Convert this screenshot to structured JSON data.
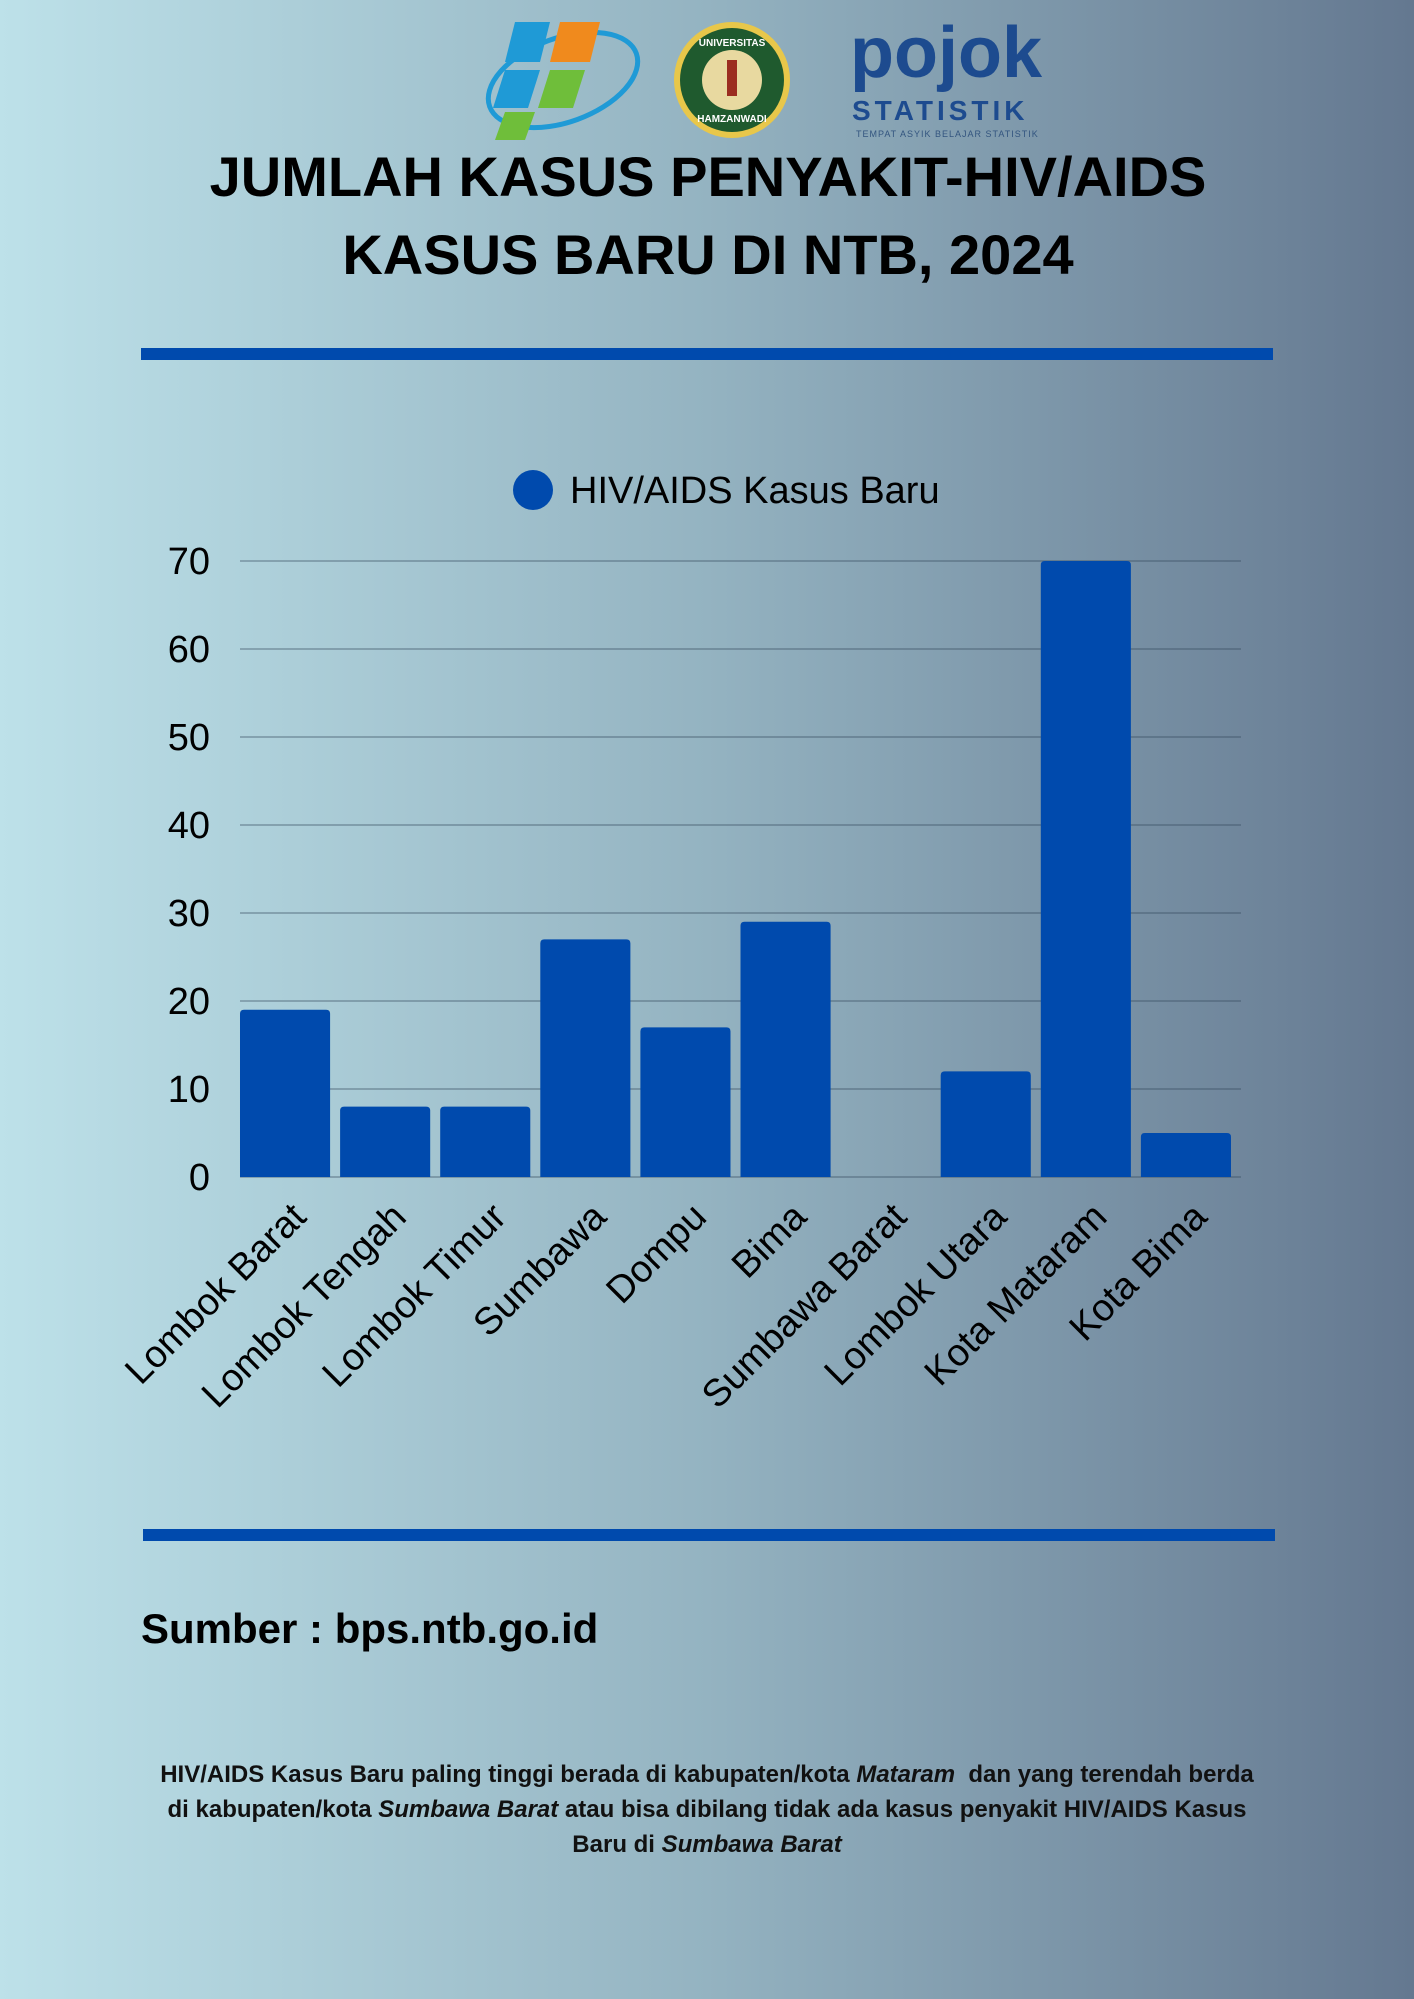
{
  "header": {
    "title_lines": [
      "JUMLAH KASUS PENYAKIT-HIV/AIDS",
      "KASUS BARU DI NTB, 2024"
    ],
    "logos": {
      "university": [
        "UNIVERSITAS",
        "HAMZANWADI"
      ],
      "pojok": [
        "pojok",
        "STATISTIK",
        "TEMPAT ASYIK BELAJAR STATISTIK"
      ]
    }
  },
  "chart_data": {
    "type": "bar",
    "categories": [
      "Lombok Barat",
      "Lombok Tengah",
      "Lombok Timur",
      "Sumbawa",
      "Dompu",
      "Bima",
      "Sumbawa Barat",
      "Lombok Utara",
      "Kota Mataram",
      "Kota Bima"
    ],
    "series": [
      {
        "name": "HIV/AIDS Kasus Baru",
        "color": "#004aad",
        "values": [
          19,
          8,
          8,
          27,
          17,
          29,
          0,
          12,
          70,
          5
        ]
      }
    ],
    "ylim": [
      0,
      70
    ],
    "yticks": [
      0,
      10,
      20,
      30,
      40,
      50,
      60,
      70
    ],
    "grid": true,
    "legend": "top"
  },
  "source": "Sumber : bps.ntb.go.id",
  "note": [
    {
      "text": "HIV/AIDS Kasus Baru paling tinggi berada di kabupaten/kota ",
      "italic": false
    },
    {
      "text": "Mataram",
      "italic": true
    },
    {
      "text": "  dan yang terendah berda di kabupaten/kota ",
      "italic": false
    },
    {
      "text": "Sumbawa Barat",
      "italic": true
    },
    {
      "text": " atau bisa dibilang tidak ada kasus penyakit HIV/AIDS Kasus Baru di ",
      "italic": false
    },
    {
      "text": "Sumbawa Barat",
      "italic": true
    }
  ]
}
